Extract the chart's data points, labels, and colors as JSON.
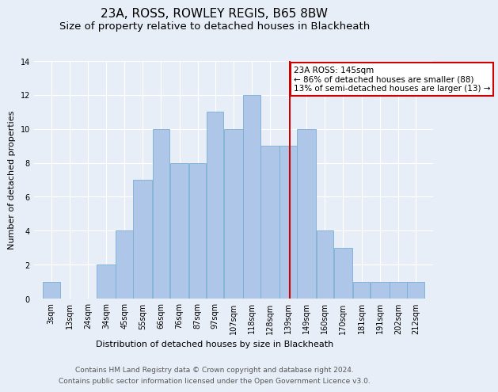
{
  "title": "23A, ROSS, ROWLEY REGIS, B65 8BW",
  "subtitle": "Size of property relative to detached houses in Blackheath",
  "xlabel": "Distribution of detached houses by size in Blackheath",
  "ylabel": "Number of detached properties",
  "bin_labels": [
    "3sqm",
    "13sqm",
    "24sqm",
    "34sqm",
    "45sqm",
    "55sqm",
    "66sqm",
    "76sqm",
    "87sqm",
    "97sqm",
    "107sqm",
    "118sqm",
    "128sqm",
    "139sqm",
    "149sqm",
    "160sqm",
    "170sqm",
    "181sqm",
    "191sqm",
    "202sqm",
    "212sqm"
  ],
  "bin_edges": [
    3,
    13,
    24,
    34,
    45,
    55,
    66,
    76,
    87,
    97,
    107,
    118,
    128,
    139,
    149,
    160,
    170,
    181,
    191,
    202,
    212,
    222
  ],
  "values": [
    1,
    0,
    0,
    2,
    4,
    7,
    10,
    8,
    8,
    11,
    10,
    12,
    9,
    9,
    10,
    4,
    3,
    1,
    1,
    1,
    1
  ],
  "bar_color": "#aec6e8",
  "bar_edge_color": "#7aafd4",
  "vline_x": 145,
  "vline_color": "#cc0000",
  "annotation_text": "23A ROSS: 145sqm\n← 86% of detached houses are smaller (88)\n13% of semi-detached houses are larger (13) →",
  "annotation_box_color": "#ffffff",
  "annotation_box_edge": "#cc0000",
  "ylim": [
    0,
    14
  ],
  "yticks": [
    0,
    2,
    4,
    6,
    8,
    10,
    12,
    14
  ],
  "background_color": "#e8eef7",
  "footer_line1": "Contains HM Land Registry data © Crown copyright and database right 2024.",
  "footer_line2": "Contains public sector information licensed under the Open Government Licence v3.0.",
  "title_fontsize": 11,
  "subtitle_fontsize": 9.5,
  "axis_label_fontsize": 8,
  "tick_fontsize": 7,
  "footer_fontsize": 6.5,
  "annot_fontsize": 7.5
}
